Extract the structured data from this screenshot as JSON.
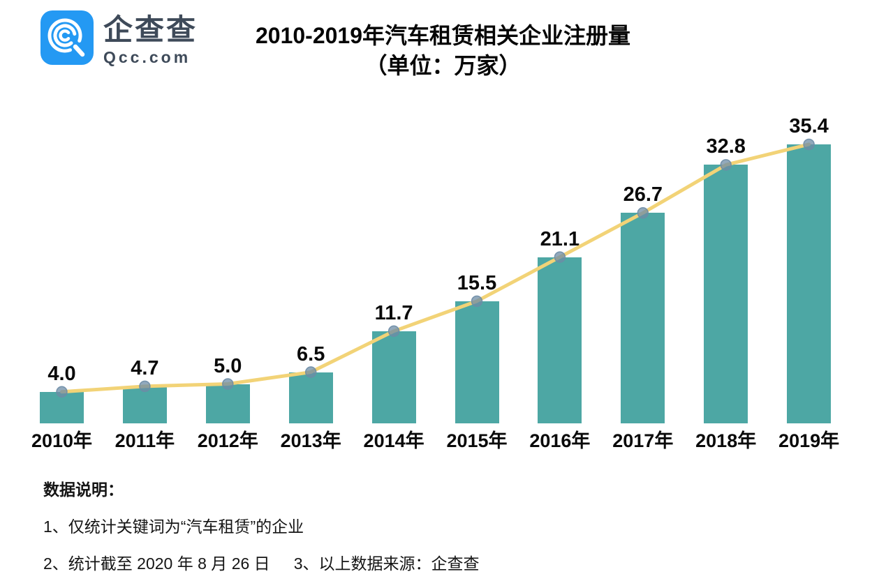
{
  "brand": {
    "logo_text": "企查查",
    "logo_domain": "Qcc.com",
    "logo_blue": "#2499f3"
  },
  "title": {
    "line1": "2010-2019年汽车租赁相关企业注册量",
    "line2": "（单位：万家）"
  },
  "chart_data": {
    "type": "bar",
    "overlay": "line",
    "title": "2010-2019年汽车租赁相关企业注册量（单位：万家）",
    "categories": [
      "2010年",
      "2011年",
      "2012年",
      "2013年",
      "2014年",
      "2015年",
      "2016年",
      "2017年",
      "2018年",
      "2019年"
    ],
    "values": [
      4.0,
      4.7,
      5.0,
      6.5,
      11.7,
      15.5,
      21.1,
      26.7,
      32.8,
      35.4
    ],
    "value_labels": [
      "4.0",
      "4.7",
      "5.0",
      "6.5",
      "11.7",
      "15.5",
      "21.1",
      "26.7",
      "32.8",
      "35.4"
    ],
    "unit": "万家",
    "ylim": [
      0,
      38
    ],
    "grid": false,
    "axis_lines": false,
    "legend": "none",
    "bar_color": "#4da7a4",
    "line_color": "#f2d377",
    "marker_color": "#6d8ca6"
  },
  "footnotes": {
    "heading": "数据说明：",
    "note1": "1、仅统计关键词为“汽车租赁”的企业",
    "note2": "2、统计截至 2020 年 8 月 26 日",
    "note3": "3、以上数据来源：企查查"
  }
}
